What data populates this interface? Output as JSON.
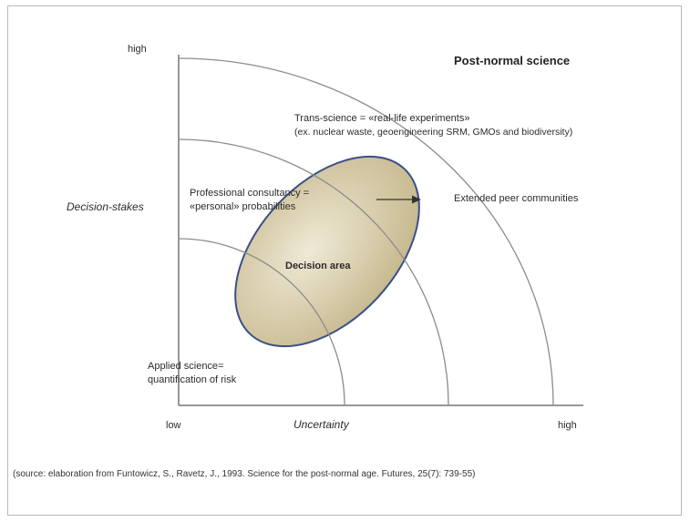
{
  "diagram": {
    "title": "Post-normal science",
    "y_axis": {
      "label": "Decision-stakes",
      "high_label": "high"
    },
    "x_axis": {
      "label": "Uncertainty",
      "low_label": "low",
      "high_label": "high"
    },
    "zones": {
      "applied_science": {
        "line1": "Applied science=",
        "line2": "quantification of risk"
      },
      "professional_consultancy": {
        "line1": "Professional consultancy =",
        "line2": "«personal» probabilities"
      },
      "trans_science": {
        "line1": "Trans-science = «real-life experiments»",
        "line2": "(ex. nuclear waste, geoengineering SRM, GMOs and biodiversity)"
      }
    },
    "decision_area_label": "Decision area",
    "extended_peer_label": "Extended peer communities",
    "colors": {
      "ellipse_fill": "#d2c6a3",
      "ellipse_stroke": "#3a4f86",
      "arc_stroke": "#8c8c8c"
    }
  },
  "source_note": "(source: elaboration from Funtowicz, S., Ravetz, J., 1993. Science for the post-normal age. Futures, 25(7): 739-55)"
}
